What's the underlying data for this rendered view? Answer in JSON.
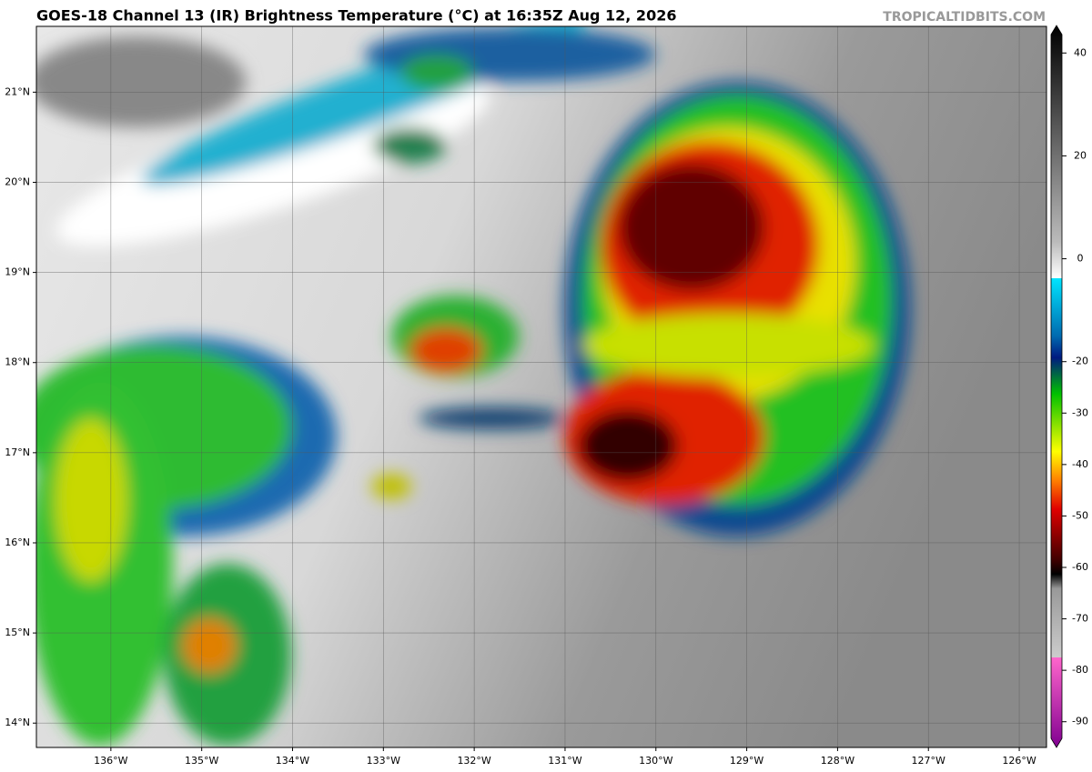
{
  "title": "GOES-18 Channel 13 (IR) Brightness Temperature (°C) at 16:35Z Aug 12, 2026",
  "watermark": "TROPICALTIDBITS.COM",
  "map": {
    "xlim": [
      -136.82,
      -125.7
    ],
    "ylim": [
      13.73,
      21.73
    ],
    "xticks": [
      {
        "value": -136,
        "label": "136°W"
      },
      {
        "value": -135,
        "label": "135°W"
      },
      {
        "value": -134,
        "label": "134°W"
      },
      {
        "value": -133,
        "label": "133°W"
      },
      {
        "value": -132,
        "label": "132°W"
      },
      {
        "value": -131,
        "label": "131°W"
      },
      {
        "value": -130,
        "label": "130°W"
      },
      {
        "value": -129,
        "label": "129°W"
      },
      {
        "value": -128,
        "label": "128°W"
      },
      {
        "value": -127,
        "label": "127°W"
      },
      {
        "value": -126,
        "label": "126°W"
      }
    ],
    "yticks": [
      {
        "value": 14,
        "label": "14°N"
      },
      {
        "value": 15,
        "label": "15°N"
      },
      {
        "value": 16,
        "label": "16°N"
      },
      {
        "value": 17,
        "label": "17°N"
      },
      {
        "value": 18,
        "label": "18°N"
      },
      {
        "value": 19,
        "label": "19°N"
      },
      {
        "value": 20,
        "label": "20°N"
      },
      {
        "value": 21,
        "label": "21°N"
      }
    ]
  },
  "colorbar": {
    "lim": [
      -95,
      45
    ],
    "ticks": [
      40,
      20,
      0,
      -20,
      -30,
      -40,
      -50,
      -60,
      -70,
      -80,
      -90
    ]
  }
}
